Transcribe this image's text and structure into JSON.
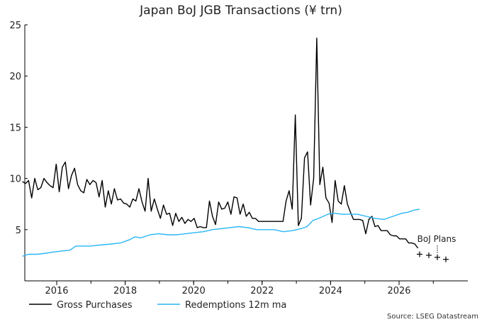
{
  "chart_data": {
    "type": "line",
    "title": "Japan BoJ JGB Transactions (¥ trn)",
    "xlabel": "",
    "ylabel": "",
    "xlim": [
      2015.0,
      2027.9
    ],
    "ylim": [
      0,
      25
    ],
    "y_ticks": [
      5,
      10,
      15,
      20,
      25
    ],
    "x_ticks": [
      2016,
      2018,
      2020,
      2022,
      2024,
      2026
    ],
    "x_tick_labels": [
      "2016",
      "2018",
      "2020",
      "2022",
      "2024",
      "2026"
    ],
    "grid": false,
    "legend_position": "bottom-left",
    "series": [
      {
        "name": "Gross Purchases",
        "color": "#000000",
        "points": [
          [
            2015.0,
            9.7
          ],
          [
            2015.1,
            9.5
          ],
          [
            2015.2,
            9.8
          ],
          [
            2015.3,
            8.1
          ],
          [
            2015.4,
            10.0
          ],
          [
            2015.5,
            8.9
          ],
          [
            2015.6,
            9.1
          ],
          [
            2015.7,
            10.0
          ],
          [
            2015.8,
            9.6
          ],
          [
            2015.9,
            9.3
          ],
          [
            2016.0,
            9.1
          ],
          [
            2016.1,
            11.4
          ],
          [
            2016.2,
            8.7
          ],
          [
            2016.3,
            11.1
          ],
          [
            2016.4,
            11.6
          ],
          [
            2016.5,
            9.0
          ],
          [
            2016.6,
            10.3
          ],
          [
            2016.7,
            11.0
          ],
          [
            2016.8,
            9.4
          ],
          [
            2016.9,
            8.8
          ],
          [
            2017.0,
            8.6
          ],
          [
            2017.1,
            9.9
          ],
          [
            2017.2,
            9.4
          ],
          [
            2017.3,
            9.8
          ],
          [
            2017.4,
            9.6
          ],
          [
            2017.5,
            8.2
          ],
          [
            2017.6,
            9.8
          ],
          [
            2017.7,
            7.2
          ],
          [
            2017.8,
            8.8
          ],
          [
            2017.9,
            7.5
          ],
          [
            2018.0,
            9.0
          ],
          [
            2018.1,
            7.9
          ],
          [
            2018.2,
            8.0
          ],
          [
            2018.3,
            7.6
          ],
          [
            2018.4,
            7.5
          ],
          [
            2018.5,
            7.2
          ],
          [
            2018.6,
            8.0
          ],
          [
            2018.7,
            7.8
          ],
          [
            2018.8,
            9.0
          ],
          [
            2018.9,
            7.7
          ],
          [
            2019.0,
            6.8
          ],
          [
            2019.1,
            10.0
          ],
          [
            2019.2,
            6.8
          ],
          [
            2019.3,
            8.0
          ],
          [
            2019.4,
            7.0
          ],
          [
            2019.5,
            6.1
          ],
          [
            2019.6,
            7.4
          ],
          [
            2019.7,
            6.5
          ],
          [
            2019.8,
            6.6
          ],
          [
            2019.9,
            5.4
          ],
          [
            2020.0,
            6.6
          ],
          [
            2020.1,
            5.8
          ],
          [
            2020.2,
            6.2
          ],
          [
            2020.3,
            5.6
          ],
          [
            2020.4,
            6.0
          ],
          [
            2020.5,
            5.8
          ],
          [
            2020.6,
            6.1
          ],
          [
            2020.7,
            5.2
          ],
          [
            2020.8,
            5.3
          ],
          [
            2020.9,
            5.2
          ],
          [
            2021.0,
            5.2
          ],
          [
            2021.1,
            7.8
          ],
          [
            2021.2,
            6.3
          ],
          [
            2021.3,
            5.5
          ],
          [
            2021.4,
            7.7
          ],
          [
            2021.5,
            7.0
          ],
          [
            2021.6,
            7.1
          ],
          [
            2021.7,
            7.7
          ],
          [
            2021.8,
            6.5
          ],
          [
            2021.9,
            8.2
          ],
          [
            2022.0,
            8.1
          ],
          [
            2022.1,
            6.5
          ],
          [
            2022.2,
            7.5
          ],
          [
            2022.3,
            6.3
          ],
          [
            2022.4,
            6.7
          ],
          [
            2022.5,
            6.1
          ],
          [
            2022.6,
            6.1
          ],
          [
            2022.7,
            5.8
          ],
          [
            2022.8,
            5.8
          ],
          [
            2022.9,
            5.8
          ],
          [
            2023.0,
            5.8
          ],
          [
            2023.1,
            5.8
          ],
          [
            2023.2,
            5.8
          ],
          [
            2023.3,
            5.8
          ],
          [
            2023.4,
            5.8
          ],
          [
            2023.5,
            5.8
          ],
          [
            2023.6,
            7.8
          ],
          [
            2023.7,
            8.8
          ],
          [
            2023.8,
            7.0
          ],
          [
            2023.9,
            16.2
          ],
          [
            2024.0,
            5.4
          ],
          [
            2024.1,
            6.1
          ],
          [
            2024.2,
            12.0
          ],
          [
            2024.3,
            12.6
          ],
          [
            2024.4,
            7.4
          ],
          [
            2024.5,
            10.0
          ],
          [
            2024.6,
            23.7
          ],
          [
            2024.7,
            9.4
          ],
          [
            2024.8,
            11.1
          ],
          [
            2024.9,
            8.1
          ],
          [
            2025.0,
            7.6
          ],
          [
            2025.1,
            5.7
          ],
          [
            2025.2,
            9.8
          ],
          [
            2025.3,
            7.8
          ],
          [
            2025.4,
            7.5
          ],
          [
            2025.5,
            9.3
          ],
          [
            2025.6,
            7.5
          ],
          [
            2025.7,
            6.7
          ],
          [
            2025.8,
            6.0
          ],
          [
            2025.9,
            6.0
          ],
          [
            2026.0,
            6.0
          ],
          [
            2026.1,
            5.9
          ],
          [
            2026.2,
            4.6
          ],
          [
            2026.3,
            6.0
          ],
          [
            2026.4,
            6.3
          ],
          [
            2026.5,
            5.3
          ],
          [
            2026.6,
            5.4
          ],
          [
            2026.7,
            4.9
          ],
          [
            2026.8,
            4.9
          ],
          [
            2026.9,
            4.9
          ],
          [
            2027.0,
            4.5
          ],
          [
            2027.1,
            4.4
          ],
          [
            2027.2,
            4.4
          ],
          [
            2027.3,
            4.1
          ],
          [
            2027.4,
            4.1
          ],
          [
            2027.5,
            4.1
          ],
          [
            2027.6,
            3.7
          ],
          [
            2027.7,
            3.7
          ],
          [
            2027.8,
            3.6
          ],
          [
            2027.9,
            3.2
          ]
        ]
      },
      {
        "name": "Redemptions 12m ma",
        "color": "#29b6f6",
        "points": [
          [
            2015.0,
            2.4
          ],
          [
            2015.2,
            2.6
          ],
          [
            2015.5,
            2.6
          ],
          [
            2015.8,
            2.7
          ],
          [
            2016.0,
            2.8
          ],
          [
            2016.3,
            2.9
          ],
          [
            2016.6,
            3.0
          ],
          [
            2016.8,
            3.4
          ],
          [
            2017.0,
            3.4
          ],
          [
            2017.3,
            3.4
          ],
          [
            2017.6,
            3.5
          ],
          [
            2018.0,
            3.6
          ],
          [
            2018.3,
            3.7
          ],
          [
            2018.6,
            4.0
          ],
          [
            2018.8,
            4.3
          ],
          [
            2019.0,
            4.2
          ],
          [
            2019.3,
            4.5
          ],
          [
            2019.6,
            4.6
          ],
          [
            2019.9,
            4.5
          ],
          [
            2020.2,
            4.5
          ],
          [
            2020.5,
            4.6
          ],
          [
            2020.8,
            4.7
          ],
          [
            2021.1,
            4.8
          ],
          [
            2021.4,
            5.0
          ],
          [
            2021.7,
            5.1
          ],
          [
            2022.0,
            5.2
          ],
          [
            2022.3,
            5.3
          ],
          [
            2022.6,
            5.2
          ],
          [
            2022.9,
            5.0
          ],
          [
            2023.2,
            5.0
          ],
          [
            2023.5,
            5.0
          ],
          [
            2023.8,
            4.8
          ],
          [
            2024.1,
            4.9
          ],
          [
            2024.4,
            5.1
          ],
          [
            2024.6,
            5.3
          ],
          [
            2024.8,
            5.9
          ],
          [
            2025.0,
            6.1
          ],
          [
            2025.3,
            6.5
          ],
          [
            2025.5,
            6.6
          ],
          [
            2025.8,
            6.5
          ],
          [
            2026.0,
            6.5
          ],
          [
            2026.3,
            6.5
          ],
          [
            2026.6,
            6.3
          ],
          [
            2026.9,
            6.1
          ],
          [
            2027.2,
            6.0
          ],
          [
            2027.5,
            6.3
          ],
          [
            2027.8,
            6.6
          ],
          [
            2028.0,
            6.7
          ],
          [
            2028.2,
            6.9
          ],
          [
            2028.4,
            7.0
          ]
        ]
      }
    ],
    "annotations": [
      {
        "text": "BoJ Plans",
        "x": 2027.6,
        "y": 3.3
      }
    ],
    "boj_plans_markers": [
      {
        "x": 2027.95,
        "y": 2.6
      },
      {
        "x": 2028.2,
        "y": 2.5
      },
      {
        "x": 2028.45,
        "y": 2.3
      },
      {
        "x": 2028.7,
        "y": 2.1
      }
    ],
    "source": "Source: LSEG Datastream"
  }
}
